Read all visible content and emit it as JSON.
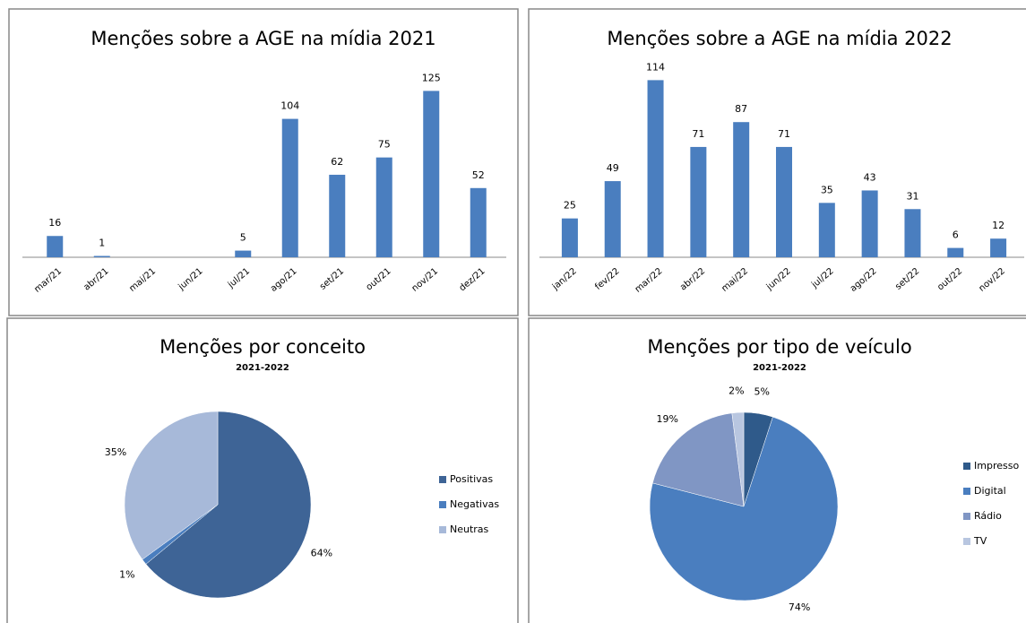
{
  "chart_data": [
    {
      "type": "bar",
      "title": "Menções sobre a AGE na mídia 2021",
      "categories": [
        "mar/21",
        "abr/21",
        "mai/21",
        "jun/21",
        "jul/21",
        "ago/21",
        "set/21",
        "out/21",
        "nov/21",
        "dez/21"
      ],
      "values": [
        16,
        1,
        0,
        0,
        5,
        104,
        62,
        75,
        125,
        52
      ],
      "color": "#4a7ebf",
      "ylim": [
        0,
        130
      ]
    },
    {
      "type": "bar",
      "title": "Menções sobre a AGE na mídia 2022",
      "categories": [
        "jan/22",
        "fev/22",
        "mar/22",
        "abr/22",
        "mai/22",
        "jun/22",
        "jul/22",
        "ago/22",
        "set/22",
        "out/22",
        "nov/22"
      ],
      "values": [
        25,
        49,
        114,
        71,
        87,
        71,
        35,
        43,
        31,
        6,
        12
      ],
      "color": "#4a7ebf",
      "ylim": [
        0,
        120
      ]
    },
    {
      "type": "pie",
      "title": "Menções por conceito",
      "subtitle": "2021-2022",
      "categories": [
        "Positivas",
        "Negativas",
        "Neutras"
      ],
      "values": [
        64,
        1,
        35
      ],
      "value_labels": [
        "64%",
        "1%",
        "35%"
      ],
      "colors": [
        "#3e6496",
        "#4a7ebf",
        "#a7b9d9"
      ]
    },
    {
      "type": "pie",
      "title": "Menções por tipo de veículo",
      "subtitle": "2021-2022",
      "categories": [
        "Impresso",
        "Digital",
        "Rádio",
        "TV"
      ],
      "values": [
        5,
        74,
        19,
        2
      ],
      "value_labels": [
        "5%",
        "74%",
        "19%",
        "2%"
      ],
      "colors": [
        "#2f5a8a",
        "#4a7ebf",
        "#8096c4",
        "#b8c6e0"
      ]
    }
  ]
}
